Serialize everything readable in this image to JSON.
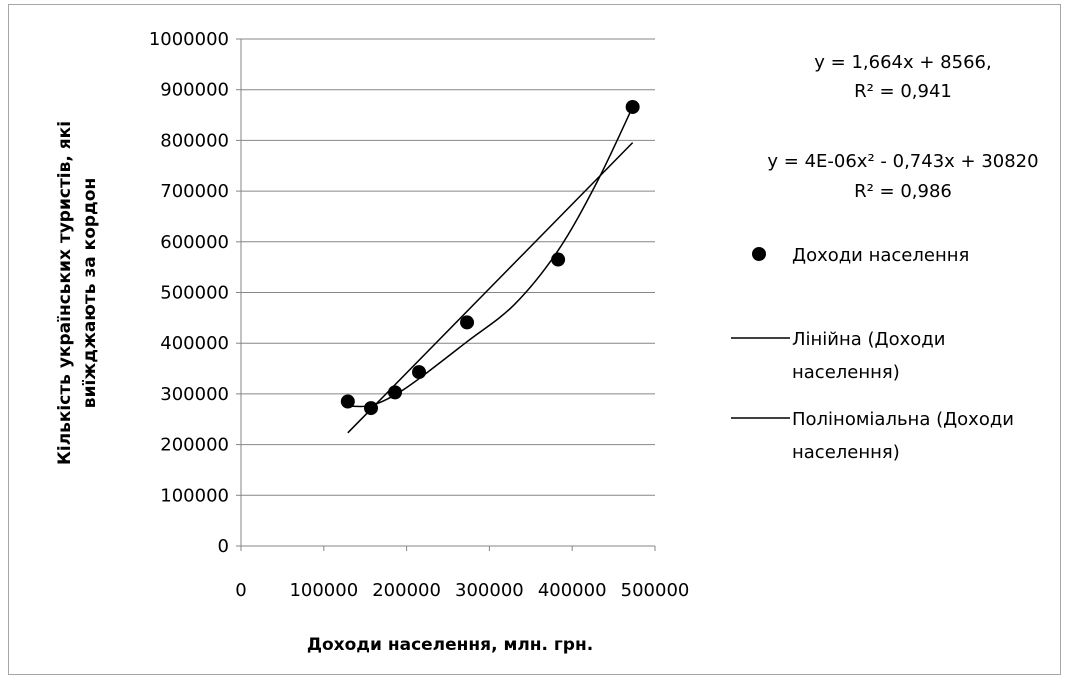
{
  "chart_data": {
    "type": "scatter",
    "xlabel": "Доходи населення, млн. грн.",
    "ylabel_lines": [
      "Кількість  українських  туристів, які",
      "виїжджають за кордон"
    ],
    "xlim": [
      0,
      500000
    ],
    "ylim": [
      0,
      1000000
    ],
    "x_ticks": [
      0,
      100000,
      200000,
      300000,
      400000,
      500000
    ],
    "x_tick_labels": [
      "0",
      "100000",
      "200000",
      "300000",
      "400000",
      "500000"
    ],
    "y_ticks": [
      0,
      100000,
      200000,
      300000,
      400000,
      500000,
      600000,
      700000,
      800000,
      900000,
      1000000
    ],
    "y_tick_labels": [
      "0",
      "100000",
      "200000",
      "300000",
      "400000",
      "500000",
      "600000",
      "700000",
      "800000",
      "900000",
      "1000000"
    ],
    "grid": "horizontal",
    "series": [
      {
        "name": "Доходи населення",
        "marker": "circle",
        "color": "#000000",
        "points": [
          {
            "x": 129000,
            "y": 285000
          },
          {
            "x": 157000,
            "y": 272000
          },
          {
            "x": 186000,
            "y": 303000
          },
          {
            "x": 215000,
            "y": 343000
          },
          {
            "x": 273000,
            "y": 441000
          },
          {
            "x": 383000,
            "y": 565000
          },
          {
            "x": 473000,
            "y": 866000
          }
        ]
      }
    ],
    "trendlines": [
      {
        "name": "Лінійна (Доходи населення)",
        "kind": "linear",
        "color": "#000000",
        "slope": 1.664,
        "intercept": 8566,
        "x_range": [
          129000,
          473000
        ],
        "equation": "y = 1,664x + 8566,",
        "r2": "R² = 0,941"
      },
      {
        "name": "Поліноміальна (Доходи населення)",
        "kind": "polynomial",
        "color": "#000000",
        "curve": [
          {
            "x": 129000,
            "y": 276000
          },
          {
            "x": 157000,
            "y": 277000
          },
          {
            "x": 186000,
            "y": 298000
          },
          {
            "x": 215000,
            "y": 330000
          },
          {
            "x": 273000,
            "y": 403000
          },
          {
            "x": 330000,
            "y": 476000
          },
          {
            "x": 383000,
            "y": 583000
          },
          {
            "x": 430000,
            "y": 718000
          },
          {
            "x": 473000,
            "y": 866000
          }
        ],
        "x_range": [
          129000,
          473000
        ],
        "equation": "y = 4E-06x² - 0,743x + 30820",
        "r2": "R² = 0,986"
      }
    ],
    "legend_position": "right",
    "legend": [
      {
        "label": "Доходи населення",
        "symbol": "marker"
      },
      {
        "label_lines": [
          "Лінійна (Доходи",
          "населення)"
        ],
        "symbol": "line"
      },
      {
        "label_lines": [
          "Поліноміальна (Доходи",
          "населення)"
        ],
        "symbol": "line"
      }
    ]
  }
}
